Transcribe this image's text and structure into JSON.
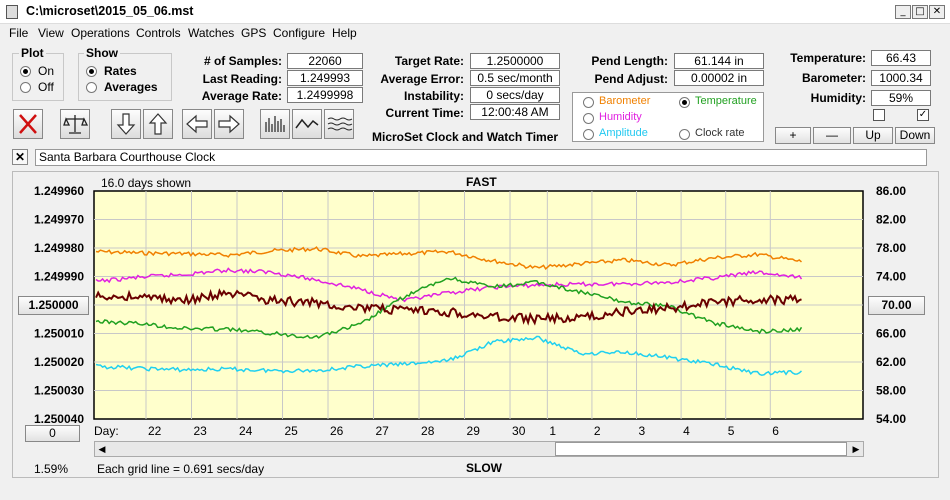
{
  "window": {
    "title": "C:\\microset\\2015_05_06.mst",
    "min": "_",
    "max": "□",
    "close": "✕"
  },
  "menu": [
    "File",
    "View",
    "Operations",
    "Controls",
    "Watches",
    "GPS",
    "Configure",
    "Help"
  ],
  "plot_group": {
    "title": "Plot",
    "options": [
      "On",
      "Off"
    ],
    "selected": "On"
  },
  "show_group": {
    "title": "Show",
    "options": [
      "Rates",
      "Averages"
    ],
    "selected": "Rates"
  },
  "stats": {
    "samples_label": "# of Samples:",
    "samples": "22060",
    "last_label": "Last Reading:",
    "last": "1.249993",
    "avg_label": "Average Rate:",
    "avg": "1.2499998"
  },
  "target": {
    "rate_label": "Target Rate:",
    "rate": "1.2500000",
    "error_label": "Average Error:",
    "error": "0.5 sec/month",
    "instab_label": "Instability:",
    "instab": "0 secs/day",
    "time_label": "Current Time:",
    "time": "12:00:48 AM",
    "product": "MicroSet Clock and Watch Timer"
  },
  "pendulum": {
    "length_label": "Pend Length:",
    "length": "61.144 in",
    "adjust_label": "Pend Adjust:",
    "adjust": "0.00002 in"
  },
  "sensor_options": [
    "Barometer",
    "Temperature",
    "Humidity",
    "Amplitude",
    "Clock rate"
  ],
  "sensor_selected": "Temperature",
  "env": {
    "temp_label": "Temperature:",
    "temp": "66.43",
    "baro_label": "Barometer:",
    "baro": "1000.34",
    "hum_label": "Humidity:",
    "hum": "59%"
  },
  "scale_buttons": [
    "+",
    "—",
    "Up",
    "Down"
  ],
  "checkboxes": [
    false,
    true
  ],
  "clock_name": "Santa Barbara Courthouse Clock",
  "chart_header": {
    "days_shown": "16.0 days shown",
    "fast": "FAST",
    "slow": "SLOW",
    "grid_note": "Each grid line = 0.691 secs/day",
    "percent": "1.59%"
  },
  "center_value": "1.250000",
  "right_center_value": "70.00",
  "zero_button": "0",
  "day_label": "Day:",
  "colors": {
    "temperature": "#20a020",
    "humidity": "#e020e0",
    "barometer": "#f08000",
    "amplitude": "#20d0f0",
    "clock_rate": "#6a0000",
    "plot_bg": "#ffffcc"
  },
  "chart_data": {
    "type": "line",
    "x_ticks": [
      "22",
      "23",
      "24",
      "25",
      "26",
      "27",
      "28",
      "29",
      "30",
      "1",
      "2",
      "3",
      "4",
      "5",
      "6"
    ],
    "y_left_ticks": [
      "1.249960",
      "1.249970",
      "1.249980",
      "1.249990",
      "1.250000",
      "1.250010",
      "1.250020",
      "1.250030",
      "1.250040"
    ],
    "y_right_ticks": [
      "86.00",
      "82.00",
      "78.00",
      "74.00",
      "70.00",
      "66.00",
      "62.00",
      "58.00",
      "54.00"
    ],
    "ylim_left": [
      1.25004,
      1.24996
    ],
    "ylim_right": [
      54,
      86
    ],
    "grid": true,
    "series": [
      {
        "name": "Barometer",
        "color": "#f08000",
        "x": [
          0,
          1,
          2,
          3,
          4,
          5,
          6,
          7,
          8,
          9,
          10,
          11,
          12,
          13,
          14,
          15,
          16
        ],
        "y": [
          77.5,
          77.3,
          77.2,
          77.0,
          77.6,
          77.9,
          76.8,
          77.2,
          77.5,
          76.2,
          75.2,
          75.8,
          76.3,
          75.6,
          76.6,
          77.1,
          76.1
        ]
      },
      {
        "name": "Humidity",
        "color": "#e020e0",
        "x": [
          0,
          1,
          2,
          3,
          4,
          5,
          6,
          7,
          8,
          9,
          10,
          11,
          12,
          13,
          14,
          15,
          16
        ],
        "y": [
          73.3,
          73.9,
          74.3,
          74.9,
          74.6,
          73.5,
          72.2,
          70.6,
          71.7,
          72.5,
          72.8,
          72.9,
          73.0,
          73.2,
          73.8,
          74.6,
          73.8
        ]
      },
      {
        "name": "Temperature",
        "color": "#20a020",
        "x": [
          0,
          1,
          2,
          3,
          4,
          5,
          6,
          7,
          8,
          9,
          10,
          11,
          12,
          13,
          14,
          15,
          16
        ],
        "y": [
          67.7,
          67.4,
          66.7,
          66.6,
          66.0,
          65.5,
          67.3,
          71.2,
          73.8,
          72.5,
          73.2,
          71.8,
          70.4,
          69.8,
          67.5,
          66.3,
          66.6
        ]
      },
      {
        "name": "Amplitude",
        "color": "#20d0f0",
        "x": [
          0,
          1,
          2,
          3,
          4,
          5,
          6,
          7,
          8,
          9,
          10,
          11,
          12,
          13,
          14,
          15,
          16
        ],
        "y": [
          61.4,
          61.1,
          60.9,
          61.0,
          60.8,
          60.8,
          61.4,
          61.7,
          62.2,
          64.8,
          65.4,
          63.2,
          63.4,
          62.6,
          61.7,
          60.4,
          60.6
        ]
      },
      {
        "name": "Clock rate",
        "color": "#6a0000",
        "x": [
          0,
          1,
          2,
          3,
          4,
          5,
          6,
          7,
          8,
          9,
          10,
          11,
          12,
          13,
          14,
          15,
          16
        ],
        "y": [
          1.2499972,
          1.249997,
          1.2499985,
          1.249996,
          1.2499985,
          1.2499992,
          1.250001,
          1.250002,
          1.2500025,
          1.2500042,
          1.2500048,
          1.2500045,
          1.2500022,
          1.2500012,
          1.249999,
          1.2499979,
          1.2499982
        ]
      }
    ]
  }
}
